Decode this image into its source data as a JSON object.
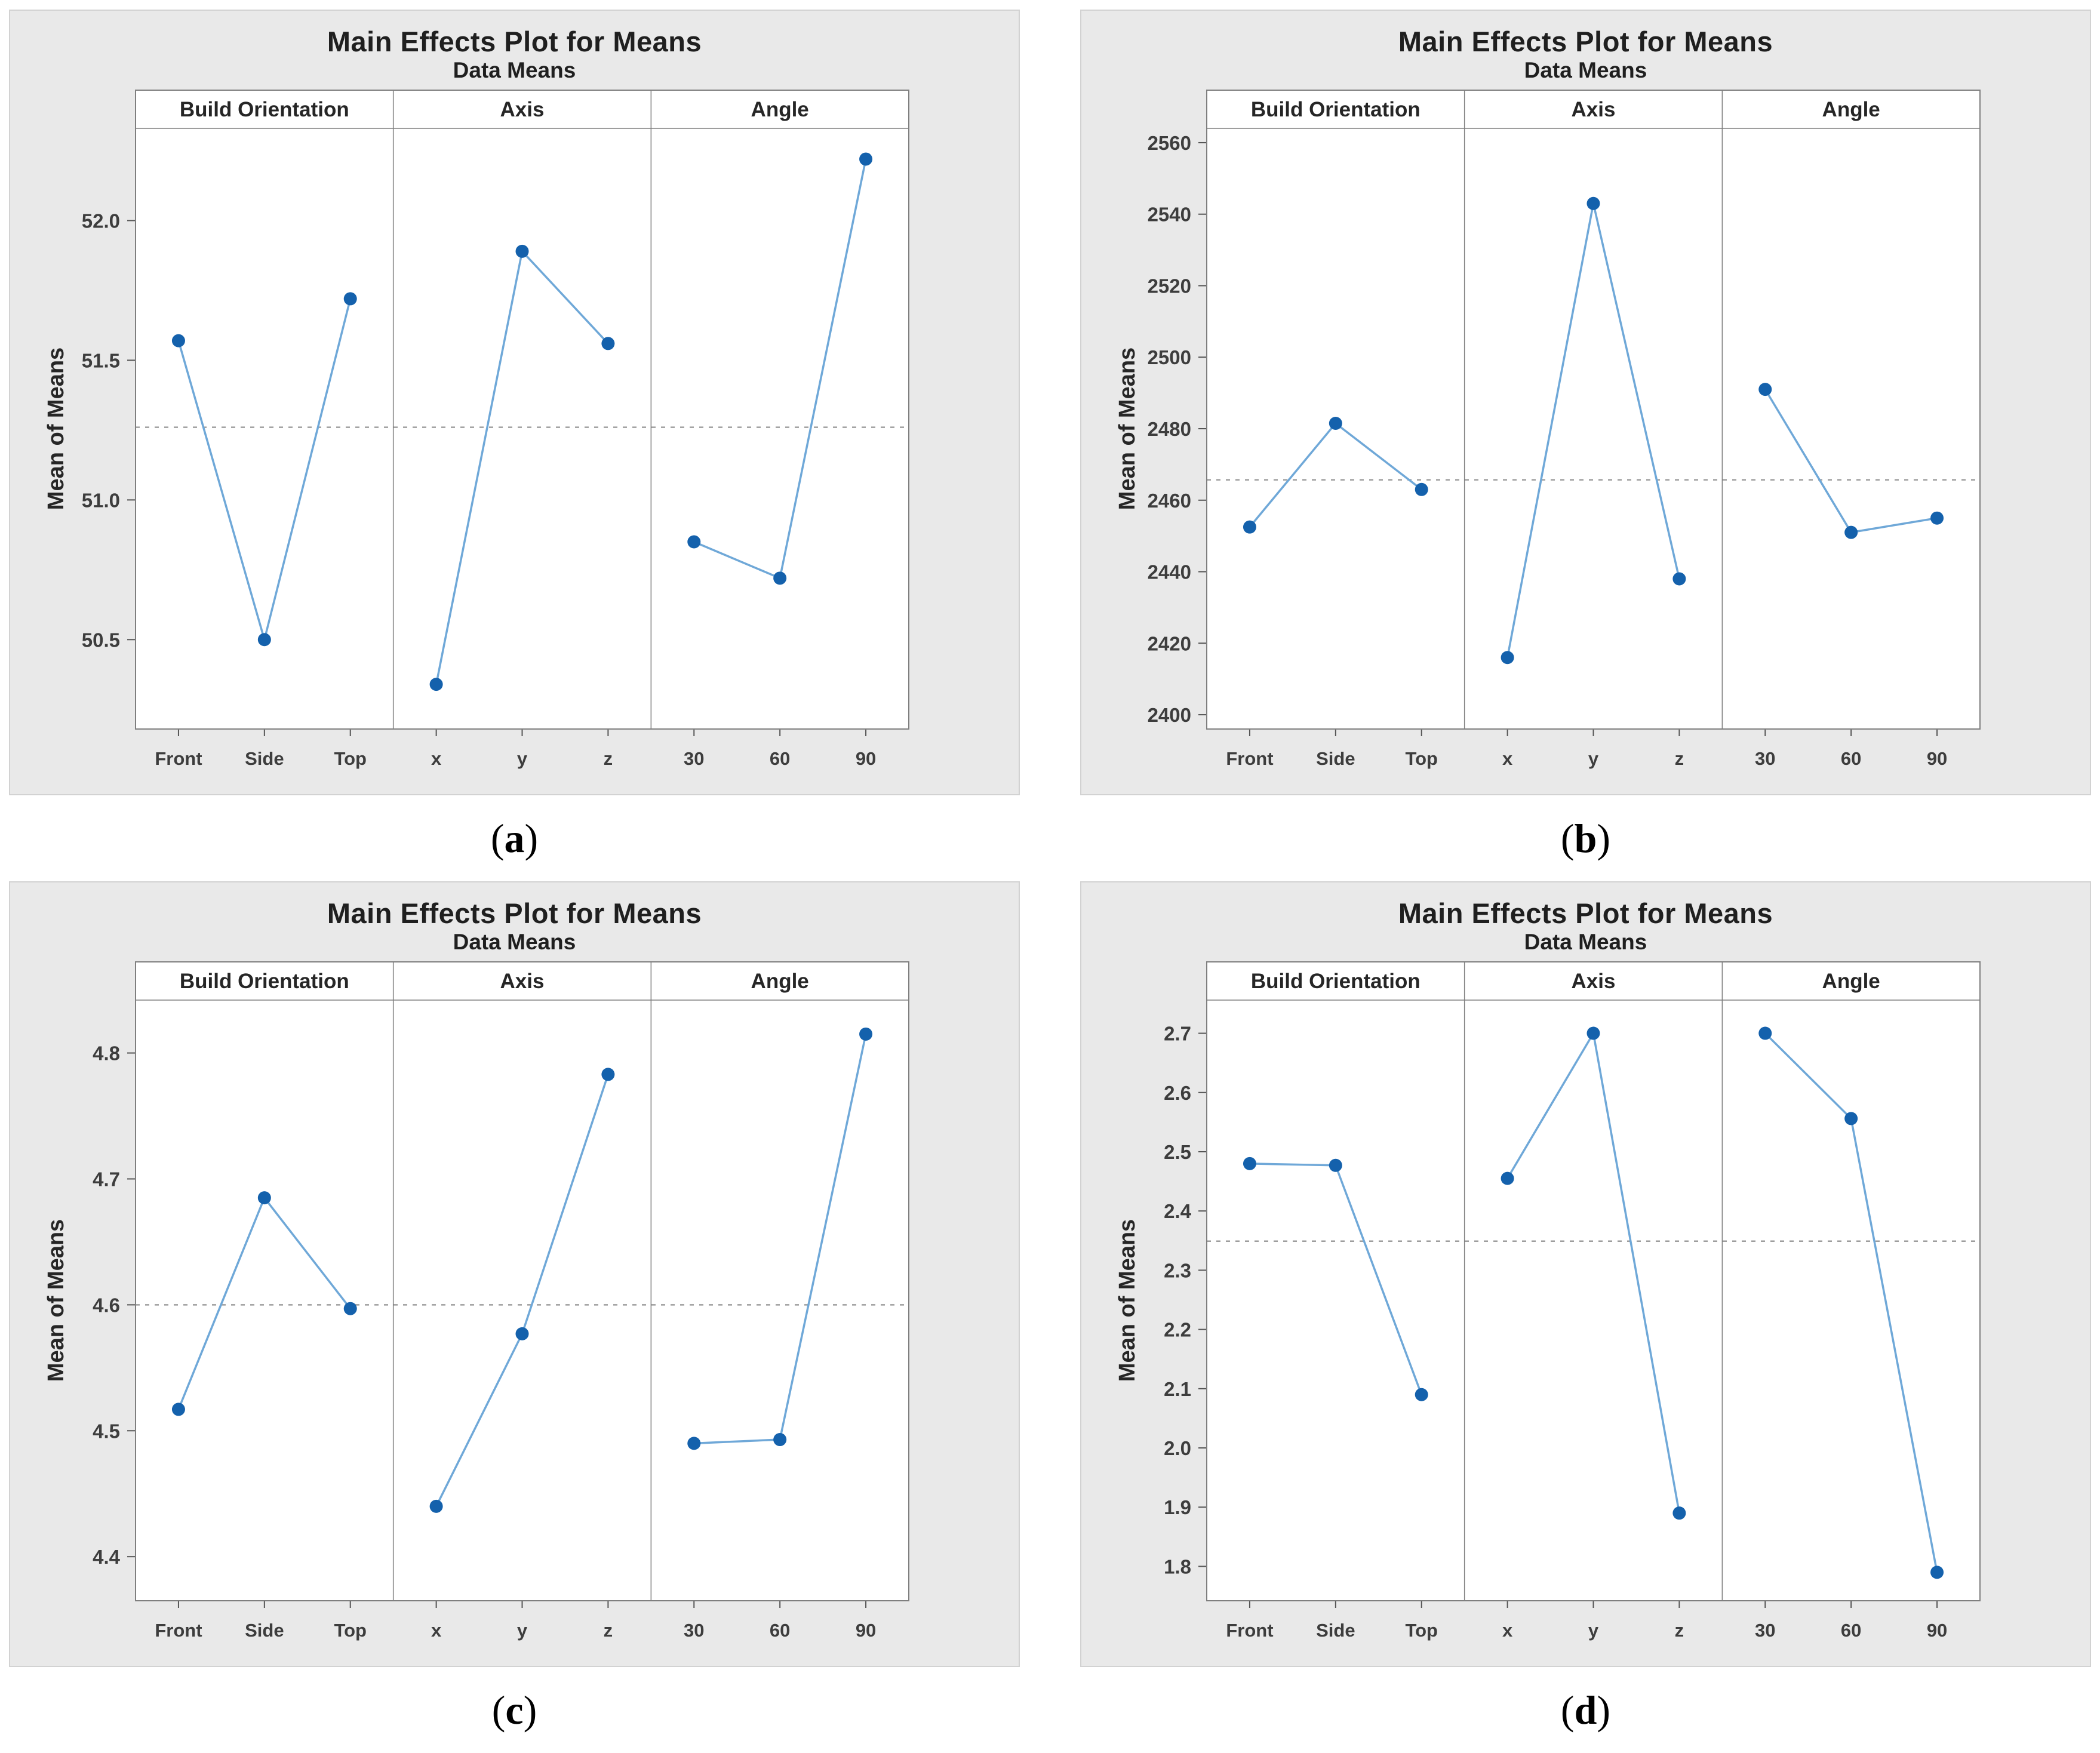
{
  "colors": {
    "card_background": "#e9e9e9",
    "plot_background": "#ffffff",
    "panel_border": "#7f7f7f",
    "marker": "#1461ac",
    "series_line": "#6fa8d8",
    "reference_line": "#9e9e9e",
    "tick_text": "#3d3d3d",
    "header_text": "#262626"
  },
  "chart_data": [
    {
      "id": "a",
      "type": "line",
      "title": "Main Effects Plot for Means",
      "subtitle": "Data Means",
      "ylabel": "Mean of Means",
      "caption_prefix": "(",
      "caption_letter": "a",
      "caption_suffix": ")",
      "panels": [
        "Build Orientation",
        "Axis",
        "Angle"
      ],
      "categories": [
        [
          "Front",
          "Side",
          "Top"
        ],
        [
          "x",
          "y",
          "z"
        ],
        [
          "30",
          "60",
          "90"
        ]
      ],
      "series": [
        [
          51.57,
          50.5,
          51.72
        ],
        [
          50.34,
          51.89,
          51.56
        ],
        [
          50.85,
          50.72,
          52.22
        ]
      ],
      "yticks": [
        50.5,
        51.0,
        51.5,
        52.0
      ],
      "ytick_labels": [
        "50.5",
        "51.0",
        "51.5",
        "52.0"
      ],
      "ylim": [
        50.18,
        52.33
      ],
      "ref_line": 51.26,
      "grid": false,
      "legend": "none"
    },
    {
      "id": "b",
      "type": "line",
      "title": "Main Effects Plot for Means",
      "subtitle": "Data Means",
      "ylabel": "Mean of Means",
      "caption_prefix": "(",
      "caption_letter": "b",
      "caption_suffix": ")",
      "panels": [
        "Build Orientation",
        "Axis",
        "Angle"
      ],
      "categories": [
        [
          "Front",
          "Side",
          "Top"
        ],
        [
          "x",
          "y",
          "z"
        ],
        [
          "30",
          "60",
          "90"
        ]
      ],
      "series": [
        [
          2452.5,
          2481.5,
          2463
        ],
        [
          2416,
          2543,
          2438
        ],
        [
          2491,
          2451,
          2455
        ]
      ],
      "yticks": [
        2400,
        2420,
        2440,
        2460,
        2480,
        2500,
        2520,
        2540,
        2560
      ],
      "ytick_labels": [
        "2400",
        "2420",
        "2440",
        "2460",
        "2480",
        "2500",
        "2520",
        "2540",
        "2560"
      ],
      "ylim": [
        2396,
        2564
      ],
      "ref_line": 2465.7,
      "grid": false,
      "legend": "none"
    },
    {
      "id": "c",
      "type": "line",
      "title": "Main Effects Plot for Means",
      "subtitle": "Data Means",
      "ylabel": "Mean of Means",
      "caption_prefix": "(",
      "caption_letter": "c",
      "caption_suffix": ")",
      "panels": [
        "Build Orientation",
        "Axis",
        "Angle"
      ],
      "categories": [
        [
          "Front",
          "Side",
          "Top"
        ],
        [
          "x",
          "y",
          "z"
        ],
        [
          "30",
          "60",
          "90"
        ]
      ],
      "series": [
        [
          4.517,
          4.685,
          4.597
        ],
        [
          4.44,
          4.577,
          4.783
        ],
        [
          4.49,
          4.493,
          4.815
        ]
      ],
      "yticks": [
        4.4,
        4.5,
        4.6,
        4.7,
        4.8
      ],
      "ytick_labels": [
        "4.4",
        "4.5",
        "4.6",
        "4.7",
        "4.8"
      ],
      "ylim": [
        4.365,
        4.842
      ],
      "ref_line": 4.6,
      "grid": false,
      "legend": "none"
    },
    {
      "id": "d",
      "type": "line",
      "title": "Main Effects Plot for Means",
      "subtitle": "Data Means",
      "ylabel": "Mean of Means",
      "caption_prefix": "(",
      "caption_letter": "d",
      "caption_suffix": ")",
      "panels": [
        "Build Orientation",
        "Axis",
        "Angle"
      ],
      "categories": [
        [
          "Front",
          "Side",
          "Top"
        ],
        [
          "x",
          "y",
          "z"
        ],
        [
          "30",
          "60",
          "90"
        ]
      ],
      "series": [
        [
          2.48,
          2.477,
          2.09
        ],
        [
          2.455,
          2.7,
          1.89
        ],
        [
          2.7,
          2.556,
          1.79
        ]
      ],
      "yticks": [
        1.8,
        1.9,
        2.0,
        2.1,
        2.2,
        2.3,
        2.4,
        2.5,
        2.6,
        2.7
      ],
      "ytick_labels": [
        "1.8",
        "1.9",
        "2.0",
        "2.1",
        "2.2",
        "2.3",
        "2.4",
        "2.5",
        "2.6",
        "2.7"
      ],
      "ylim": [
        1.742,
        2.756
      ],
      "ref_line": 2.349,
      "grid": false,
      "legend": "none"
    }
  ]
}
